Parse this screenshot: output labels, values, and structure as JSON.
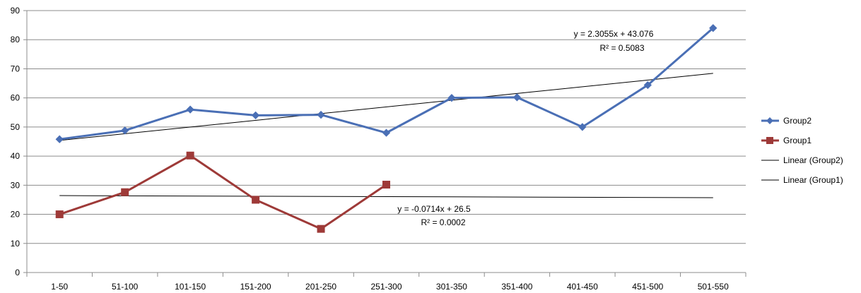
{
  "chart_data": {
    "type": "line",
    "title": "",
    "xlabel": "",
    "ylabel": "",
    "categories": [
      "1-50",
      "51-100",
      "101-150",
      "151-200",
      "201-250",
      "251-300",
      "301-350",
      "351-400",
      "401-450",
      "451-500",
      "501-550"
    ],
    "ylim": [
      0,
      90
    ],
    "yticks": [
      0,
      10,
      20,
      30,
      40,
      50,
      60,
      70,
      80,
      90
    ],
    "grid": true,
    "legend_position": "right",
    "series": [
      {
        "name": "Group2",
        "color": "#4a6fb5",
        "marker": "diamond",
        "values": [
          45.8,
          48.8,
          56.0,
          54.0,
          54.2,
          48.0,
          60.0,
          60.2,
          50.0,
          64.4,
          84.0
        ]
      },
      {
        "name": "Group1",
        "color": "#9e3a38",
        "marker": "square",
        "values": [
          20.0,
          27.6,
          40.2,
          25.0,
          15.0,
          30.2,
          null,
          null,
          null,
          null,
          null
        ]
      }
    ],
    "trendlines": [
      {
        "name": "Linear (Group2)",
        "series": "Group2",
        "slope": 2.3055,
        "intercept": 43.076,
        "equation": "y = 2.3055x + 43.076",
        "r2": "R² = 0.5083",
        "color": "#000000"
      },
      {
        "name": "Linear (Group1)",
        "series": "Group1",
        "slope": -0.0714,
        "intercept": 26.5,
        "equation": "y = -0.0714x + 26.5",
        "r2": "R² = 0.0002",
        "color": "#000000"
      }
    ]
  }
}
